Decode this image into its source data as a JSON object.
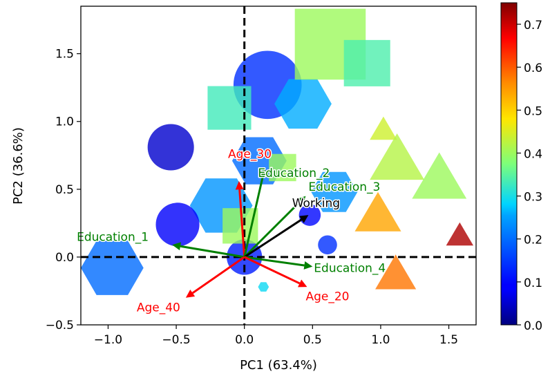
{
  "chart_data": {
    "type": "scatter",
    "title": "",
    "xlabel": "PC1 (63.4%)",
    "ylabel": "PC2 (36.6%)",
    "xlim": [
      -1.2,
      1.7
    ],
    "ylim": [
      -0.5,
      1.85
    ],
    "xticks": [
      -1.0,
      -0.5,
      0.0,
      0.5,
      1.0,
      1.5
    ],
    "xtick_labels": [
      "−1.0",
      "−0.5",
      "0.0",
      "0.5",
      "1.0",
      "1.5"
    ],
    "yticks": [
      -0.5,
      0.0,
      0.5,
      1.0,
      1.5
    ],
    "ytick_labels": [
      "−0.5",
      "0.0",
      "0.5",
      "1.0",
      "1.5"
    ],
    "grid": false,
    "colorbar": {
      "colormap": "jet",
      "range": [
        0.0,
        0.75
      ],
      "ticks": [
        0.0,
        0.1,
        0.2,
        0.3,
        0.4,
        0.5,
        0.6,
        0.7
      ],
      "tick_labels": [
        "0.0",
        "0.1",
        "0.2",
        "0.3",
        "0.4",
        "0.5",
        "0.6",
        "0.7"
      ]
    },
    "reference_lines": {
      "x": 0,
      "y": 0,
      "style": "dashed",
      "color": "#000000"
    },
    "points": [
      {
        "x": -0.97,
        "y": -0.08,
        "shape": "hexagon",
        "size": 0.23,
        "value": 0.2
      },
      {
        "x": -0.17,
        "y": 0.38,
        "shape": "hexagon",
        "size": 0.23,
        "value": 0.24
      },
      {
        "x": 0.17,
        "y": 1.27,
        "shape": "circle",
        "size": 0.25,
        "value": 0.14
      },
      {
        "x": 0.43,
        "y": 1.13,
        "shape": "hexagon",
        "size": 0.21,
        "value": 0.26
      },
      {
        "x": -0.54,
        "y": 0.81,
        "shape": "circle",
        "size": 0.17,
        "value": 0.05
      },
      {
        "x": -0.49,
        "y": 0.24,
        "shape": "circle",
        "size": 0.16,
        "value": 0.08
      },
      {
        "x": 0.11,
        "y": 0.71,
        "shape": "hexagon",
        "size": 0.2,
        "value": 0.2
      },
      {
        "x": 0.66,
        "y": 0.48,
        "shape": "hexagon",
        "size": 0.17,
        "value": 0.24
      },
      {
        "x": 0.48,
        "y": 0.31,
        "shape": "circle",
        "size": 0.08,
        "value": 0.1
      },
      {
        "x": 0.61,
        "y": 0.09,
        "shape": "circle",
        "size": 0.07,
        "value": 0.14
      },
      {
        "x": 0.0,
        "y": 0.0,
        "shape": "circle",
        "size": 0.13,
        "value": 0.12
      },
      {
        "x": 0.14,
        "y": -0.22,
        "shape": "hexagon",
        "size": 0.04,
        "value": 0.29
      },
      {
        "x": 0.63,
        "y": 1.57,
        "shape": "square",
        "size": 0.26,
        "value": 0.4
      },
      {
        "x": 0.9,
        "y": 1.43,
        "shape": "square",
        "size": 0.17,
        "value": 0.34
      },
      {
        "x": -0.11,
        "y": 1.1,
        "shape": "square",
        "size": 0.16,
        "value": 0.33
      },
      {
        "x": 0.28,
        "y": 0.66,
        "shape": "square",
        "size": 0.1,
        "value": 0.4
      },
      {
        "x": -0.03,
        "y": 0.23,
        "shape": "square",
        "size": 0.13,
        "value": 0.4
      },
      {
        "x": 1.02,
        "y": 0.93,
        "shape": "triangle",
        "size": 0.1,
        "value": 0.44
      },
      {
        "x": 1.12,
        "y": 0.7,
        "shape": "triangle",
        "size": 0.2,
        "value": 0.42
      },
      {
        "x": 1.43,
        "y": 0.56,
        "shape": "triangle",
        "size": 0.2,
        "value": 0.4
      },
      {
        "x": 0.98,
        "y": 0.3,
        "shape": "triangle",
        "size": 0.17,
        "value": 0.54
      },
      {
        "x": 1.11,
        "y": -0.14,
        "shape": "triangle",
        "size": 0.15,
        "value": 0.58
      },
      {
        "x": 1.58,
        "y": 0.15,
        "shape": "triangle",
        "size": 0.1,
        "value": 0.72
      }
    ],
    "vectors": [
      {
        "label": "Age_30",
        "x": -0.04,
        "y": 0.56,
        "color": "#ff0000",
        "lx": -0.12,
        "ly": 0.73
      },
      {
        "label": "Education_2",
        "x": 0.15,
        "y": 0.66,
        "color": "#008000",
        "lx": 0.1,
        "ly": 0.59
      },
      {
        "label": "Education_3",
        "x": 0.45,
        "y": 0.45,
        "color": "#008000",
        "lx": 0.47,
        "ly": 0.49
      },
      {
        "label": "Working",
        "x": 0.47,
        "y": 0.31,
        "color": "#000000",
        "lx": 0.35,
        "ly": 0.37
      },
      {
        "label": "Education_1",
        "x": -0.53,
        "y": 0.09,
        "color": "#008000",
        "lx": -1.23,
        "ly": 0.12
      },
      {
        "label": "Education_4",
        "x": 0.5,
        "y": -0.07,
        "color": "#008000",
        "lx": 0.51,
        "ly": -0.11
      },
      {
        "label": "Age_20",
        "x": 0.46,
        "y": -0.22,
        "color": "#ff0000",
        "lx": 0.45,
        "ly": -0.32
      },
      {
        "label": "Age_40",
        "x": -0.43,
        "y": -0.3,
        "color": "#ff0000",
        "lx": -0.79,
        "ly": -0.4
      }
    ]
  }
}
